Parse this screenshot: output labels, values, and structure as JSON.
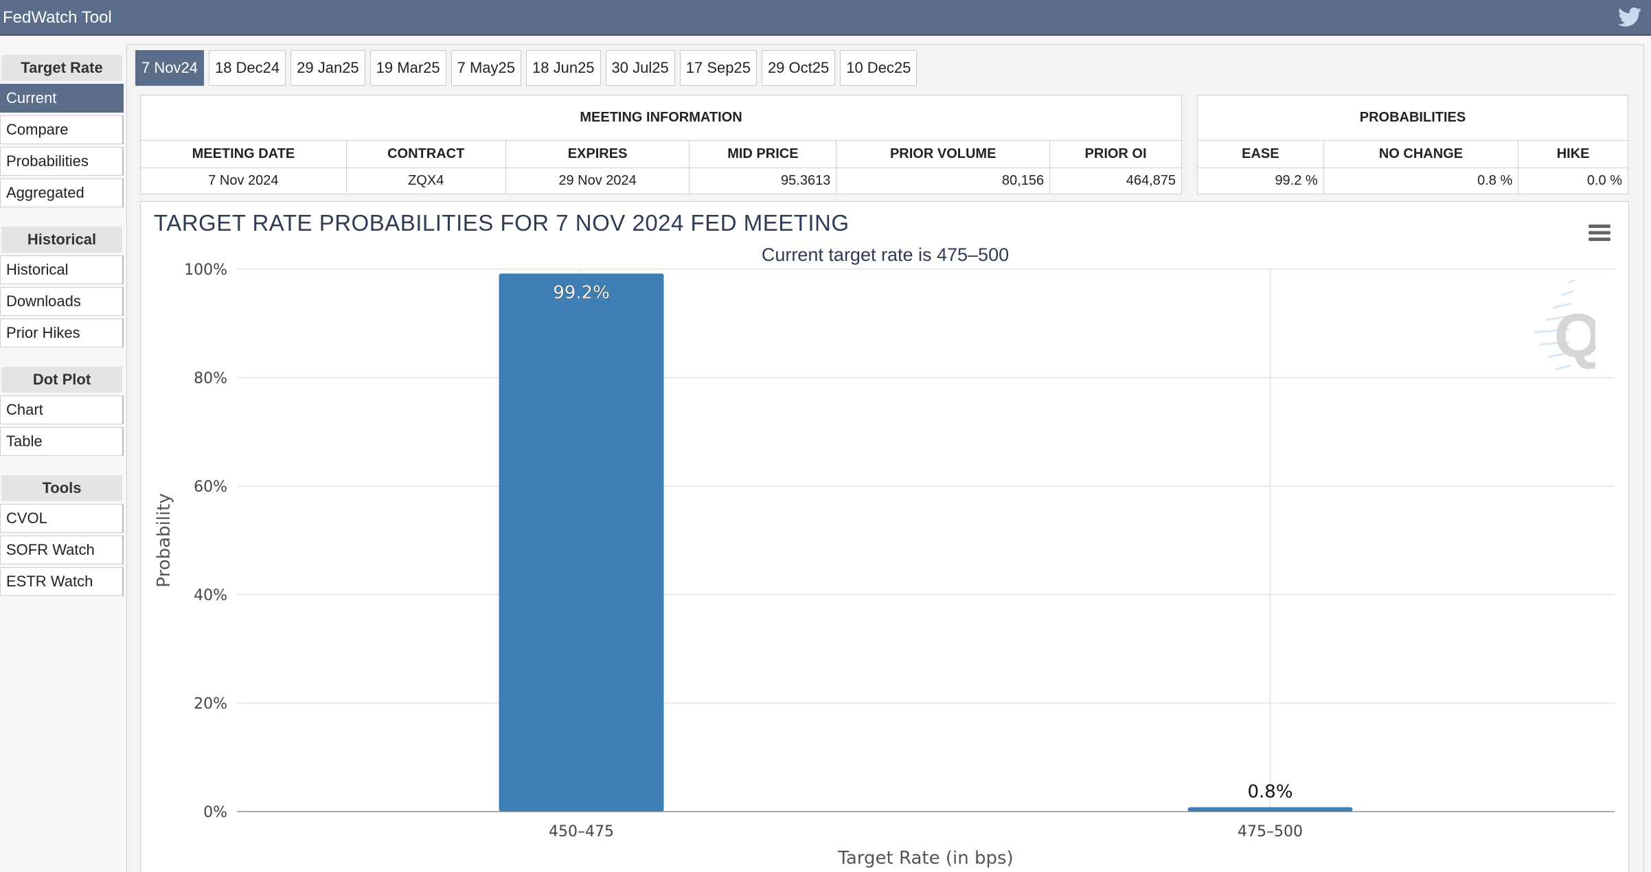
{
  "app": {
    "title": "FedWatch Tool"
  },
  "sidebar": {
    "sections": [
      {
        "header": "Target Rate",
        "items": [
          "Current",
          "Compare",
          "Probabilities",
          "Aggregated"
        ]
      },
      {
        "header": "Historical",
        "items": [
          "Historical",
          "Downloads",
          "Prior Hikes"
        ]
      },
      {
        "header": "Dot Plot",
        "items": [
          "Chart",
          "Table"
        ]
      },
      {
        "header": "Tools",
        "items": [
          "CVOL",
          "SOFR Watch",
          "ESTR Watch"
        ]
      }
    ],
    "active_item": "Current"
  },
  "tabs": [
    "7 Nov24",
    "18 Dec24",
    "29 Jan25",
    "19 Mar25",
    "7 May25",
    "18 Jun25",
    "30 Jul25",
    "17 Sep25",
    "29 Oct25",
    "10 Dec25"
  ],
  "active_tab": "7 Nov24",
  "meeting_info": {
    "header": "MEETING INFORMATION",
    "columns": [
      "MEETING DATE",
      "CONTRACT",
      "EXPIRES",
      "MID PRICE",
      "PRIOR VOLUME",
      "PRIOR OI"
    ],
    "row": [
      "7 Nov 2024",
      "ZQX4",
      "29 Nov 2024",
      "95.3613",
      "80,156",
      "464,875"
    ]
  },
  "probabilities": {
    "header": "PROBABILITIES",
    "columns": [
      "EASE",
      "NO CHANGE",
      "HIKE"
    ],
    "row": [
      "99.2 %",
      "0.8 %",
      "0.0 %"
    ]
  },
  "chart_data": {
    "type": "bar",
    "title": "TARGET RATE PROBABILITIES FOR 7 NOV 2024 FED MEETING",
    "subtitle": "Current target rate is 475–500",
    "categories": [
      "450–475",
      "475–500"
    ],
    "values": [
      99.2,
      0.8
    ],
    "data_labels": [
      "99.2%",
      "0.8%"
    ],
    "xlabel": "Target Rate (in bps)",
    "ylabel": "Probability",
    "ylim": [
      0,
      100
    ],
    "yticks": [
      "0%",
      "20%",
      "40%",
      "60%",
      "80%",
      "100%"
    ],
    "grid": true,
    "bar_color": "#3f7fb5"
  }
}
